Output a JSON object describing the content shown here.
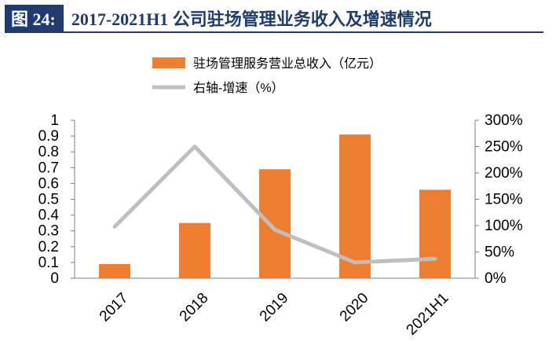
{
  "header": {
    "figure_label": "图 24:",
    "title": "2017-2021H1 公司驻场管理业务收入及增速情况"
  },
  "chart_data": {
    "type": "bar",
    "categories": [
      "2017",
      "2018",
      "2019",
      "2020",
      "2021H1"
    ],
    "series": [
      {
        "name": "驻场管理服务营业总收入（亿元）",
        "type": "bar",
        "axis": "left",
        "color": "#ED7D31",
        "values": [
          0.09,
          0.35,
          0.69,
          0.91,
          0.56
        ]
      },
      {
        "name": "右轴-增速（%）",
        "type": "line",
        "axis": "right",
        "color": "#BFBFBF",
        "values": [
          98,
          250,
          92,
          30,
          37
        ]
      }
    ],
    "y_left": {
      "ylim": [
        0,
        1
      ],
      "ticks": [
        "0",
        "0.1",
        "0.2",
        "0.3",
        "0.4",
        "0.5",
        "0.6",
        "0.7",
        "0.8",
        "0.9",
        "1"
      ]
    },
    "y_right": {
      "ylim": [
        0,
        300
      ],
      "ticks": [
        "0%",
        "50%",
        "100%",
        "150%",
        "200%",
        "250%",
        "300%"
      ]
    },
    "legend_position": "top-center",
    "grid": false
  }
}
